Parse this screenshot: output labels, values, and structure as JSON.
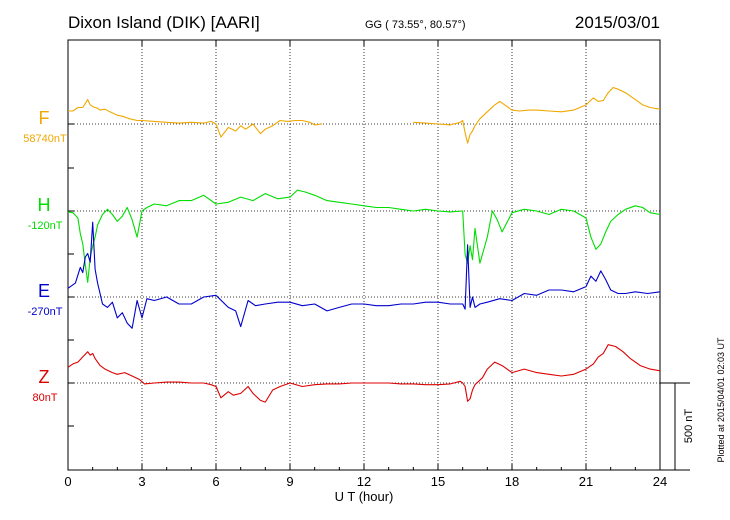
{
  "header": {
    "station": "Dixon Island (DIK)  [AARI]",
    "coords": "GG ( 73.55°,  80.57°)",
    "date": "2015/03/01"
  },
  "footer": {
    "plotted_note": "Plotted at 2015/04/01 02:03 UT"
  },
  "colors": {
    "F": "#f0a800",
    "H": "#00dd00",
    "E": "#0000cc",
    "Z": "#dd0000"
  },
  "chart_data": {
    "type": "line",
    "title": "Dixon Island (DIK)  [AARI]",
    "xlabel": "U T (hour)",
    "ylabel": "",
    "xlim": [
      0,
      24
    ],
    "x_ticks": [
      "0",
      "3",
      "6",
      "9",
      "12",
      "15",
      "18",
      "21",
      "24"
    ],
    "scale_bar_label": "500 nT",
    "series": [
      {
        "name": "F",
        "baseline_label": "58740nT",
        "units": "nT relative to baseline",
        "x": [
          0.0,
          0.2,
          0.4,
          0.6,
          0.8,
          0.9,
          1.0,
          1.1,
          1.2,
          1.3,
          1.5,
          1.7,
          2.0,
          2.2,
          2.5,
          2.8,
          3.0,
          3.5,
          4.0,
          4.5,
          5.0,
          5.5,
          5.8,
          6.0,
          6.2,
          6.5,
          6.8,
          7.0,
          7.2,
          7.5,
          7.8,
          8.0,
          8.3,
          8.6,
          8.9,
          9.2,
          9.5,
          9.8,
          10.0,
          10.3,
          14.0,
          14.5,
          15.0,
          15.5,
          15.9,
          16.0,
          16.1,
          16.2,
          16.3,
          16.4,
          16.5,
          16.7,
          17.0,
          17.3,
          17.5,
          17.8,
          18.0,
          18.3,
          18.7,
          19.0,
          19.5,
          20.0,
          20.5,
          21.0,
          21.3,
          21.5,
          21.7,
          21.9,
          22.1,
          22.3,
          22.6,
          23.0,
          23.3,
          23.6,
          24.0
        ],
        "y": [
          75,
          75,
          95,
          95,
          140,
          110,
          100,
          95,
          90,
          80,
          85,
          70,
          50,
          45,
          30,
          20,
          20,
          15,
          10,
          5,
          10,
          5,
          15,
          0,
          -75,
          -20,
          -40,
          -10,
          -30,
          0,
          -55,
          -30,
          -10,
          20,
          15,
          20,
          20,
          10,
          -5,
          0,
          10,
          5,
          0,
          -5,
          10,
          20,
          -50,
          -110,
          -60,
          -40,
          -10,
          30,
          70,
          110,
          130,
          100,
          80,
          75,
          80,
          80,
          75,
          70,
          80,
          110,
          150,
          130,
          135,
          180,
          210,
          200,
          180,
          140,
          110,
          95,
          85
        ]
      },
      {
        "name": "H",
        "baseline_label": "-120nT",
        "units": "nT relative to baseline",
        "x": [
          0.0,
          0.2,
          0.4,
          0.5,
          0.6,
          0.7,
          0.8,
          0.9,
          1.0,
          1.1,
          1.2,
          1.4,
          1.6,
          1.8,
          2.0,
          2.2,
          2.4,
          2.6,
          2.8,
          3.0,
          3.2,
          3.5,
          4.0,
          4.5,
          5.0,
          5.5,
          6.0,
          6.5,
          7.0,
          7.5,
          8.0,
          8.5,
          9.0,
          9.3,
          9.6,
          10.0,
          10.5,
          11.0,
          11.5,
          12.0,
          12.5,
          13.0,
          13.5,
          14.0,
          14.5,
          15.0,
          15.5,
          16.0,
          16.1,
          16.2,
          16.3,
          16.4,
          16.5,
          16.7,
          17.0,
          17.2,
          17.4,
          17.6,
          18.0,
          18.5,
          19.0,
          19.5,
          20.0,
          20.5,
          21.0,
          21.2,
          21.4,
          21.6,
          21.8,
          22.0,
          22.3,
          22.6,
          23.0,
          23.3,
          23.6,
          24.0
        ],
        "y": [
          -5,
          -10,
          -40,
          -130,
          -190,
          -310,
          -410,
          -270,
          -200,
          -150,
          -80,
          -20,
          10,
          -20,
          -60,
          -30,
          20,
          -50,
          -150,
          0,
          20,
          40,
          30,
          60,
          60,
          90,
          40,
          50,
          80,
          60,
          100,
          70,
          80,
          120,
          110,
          90,
          60,
          50,
          40,
          30,
          20,
          20,
          10,
          0,
          10,
          0,
          -5,
          0,
          -250,
          -300,
          -200,
          -280,
          -100,
          -300,
          -150,
          0,
          -50,
          -120,
          -10,
          10,
          0,
          -20,
          10,
          0,
          -40,
          -150,
          -220,
          -190,
          -120,
          -60,
          -20,
          10,
          30,
          20,
          -10,
          -20
        ]
      },
      {
        "name": "E",
        "baseline_label": "-270nT",
        "units": "nT relative to baseline",
        "x": [
          0.0,
          0.3,
          0.5,
          0.6,
          0.7,
          0.8,
          0.9,
          1.0,
          1.1,
          1.2,
          1.4,
          1.6,
          1.8,
          2.0,
          2.2,
          2.4,
          2.6,
          2.8,
          3.0,
          3.2,
          3.5,
          4.0,
          4.5,
          5.0,
          5.5,
          6.0,
          6.5,
          6.8,
          7.0,
          7.3,
          7.6,
          8.0,
          8.5,
          9.0,
          9.5,
          10.0,
          10.5,
          11.0,
          11.5,
          12.0,
          12.5,
          13.0,
          13.5,
          14.0,
          14.5,
          15.0,
          15.5,
          16.0,
          16.1,
          16.2,
          16.3,
          16.4,
          16.5,
          16.7,
          17.0,
          17.5,
          18.0,
          18.5,
          19.0,
          19.5,
          20.0,
          20.5,
          21.0,
          21.2,
          21.4,
          21.6,
          21.8,
          22.0,
          22.3,
          22.6,
          23.0,
          23.5,
          24.0
        ],
        "y": [
          50,
          80,
          170,
          140,
          230,
          250,
          200,
          430,
          160,
          80,
          -40,
          -60,
          -30,
          -120,
          -90,
          -150,
          -180,
          -20,
          -120,
          -10,
          -20,
          0,
          -40,
          -40,
          0,
          10,
          -60,
          -80,
          -170,
          -20,
          -50,
          -40,
          -30,
          -30,
          -50,
          -40,
          -80,
          -60,
          -40,
          -40,
          -50,
          -50,
          -40,
          -40,
          -30,
          -30,
          -40,
          -40,
          -70,
          300,
          -60,
          0,
          -60,
          -40,
          -30,
          -10,
          -20,
          20,
          10,
          40,
          40,
          30,
          60,
          120,
          90,
          150,
          100,
          40,
          20,
          20,
          30,
          20,
          30
        ]
      },
      {
        "name": "Z",
        "baseline_label": "80nT",
        "units": "nT relative to baseline",
        "x": [
          0.0,
          0.2,
          0.4,
          0.6,
          0.8,
          0.9,
          1.0,
          1.1,
          1.3,
          1.5,
          1.8,
          2.0,
          2.3,
          2.6,
          2.9,
          3.1,
          3.5,
          4.0,
          4.5,
          5.0,
          5.5,
          5.8,
          6.0,
          6.2,
          6.5,
          6.7,
          7.0,
          7.3,
          7.5,
          7.8,
          8.0,
          8.3,
          8.6,
          9.0,
          9.5,
          10.0,
          10.5,
          11.0,
          11.5,
          12.0,
          12.5,
          13.0,
          13.5,
          14.0,
          14.5,
          15.0,
          15.5,
          15.9,
          16.0,
          16.1,
          16.2,
          16.3,
          16.4,
          16.5,
          16.8,
          17.0,
          17.3,
          17.6,
          18.0,
          18.5,
          19.0,
          19.5,
          20.0,
          20.5,
          21.0,
          21.3,
          21.5,
          21.7,
          21.9,
          22.2,
          22.5,
          22.8,
          23.2,
          23.6,
          24.0
        ],
        "y": [
          90,
          110,
          120,
          150,
          180,
          160,
          170,
          140,
          100,
          80,
          60,
          50,
          60,
          40,
          20,
          -5,
          0,
          5,
          5,
          0,
          0,
          -10,
          -20,
          -85,
          -50,
          -70,
          -60,
          -20,
          -60,
          -100,
          -110,
          -40,
          -20,
          0,
          -20,
          -10,
          -5,
          -5,
          0,
          0,
          0,
          0,
          -5,
          -5,
          -10,
          -10,
          -5,
          10,
          0,
          -20,
          -105,
          -90,
          -40,
          -10,
          30,
          80,
          120,
          100,
          60,
          80,
          60,
          50,
          40,
          50,
          80,
          110,
          150,
          170,
          220,
          210,
          180,
          140,
          100,
          80,
          70
        ]
      }
    ]
  }
}
